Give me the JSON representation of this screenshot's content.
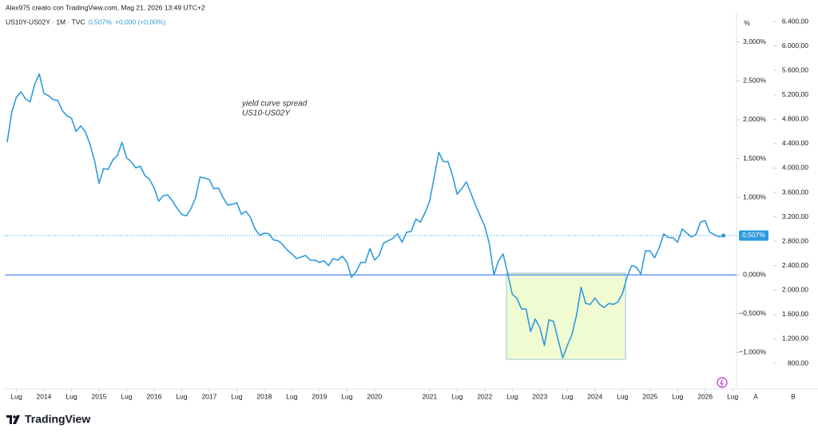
{
  "header": {
    "author_line": "Alex975 creato con TradingView.com, Mag 21, 2026 13:49 UTC+2",
    "symbol": "US10Y-US02Y · 1M · TVC",
    "last": "0,507%",
    "change": "+0,000 (+0,00%)"
  },
  "chart_data": {
    "type": "line",
    "annotation": [
      "yield curve spread",
      "US10-US02Y"
    ],
    "y_unit": "%",
    "x": [
      "2013-05",
      "2013-06",
      "2013-07",
      "2013-08",
      "2013-09",
      "2013-10",
      "2013-11",
      "2013-12",
      "2014-01",
      "2014-02",
      "2014-03",
      "2014-04",
      "2014-05",
      "2014-06",
      "2014-07",
      "2014-08",
      "2014-09",
      "2014-10",
      "2014-11",
      "2014-12",
      "2015-01",
      "2015-02",
      "2015-03",
      "2015-04",
      "2015-05",
      "2015-06",
      "2015-07",
      "2015-08",
      "2015-09",
      "2015-10",
      "2015-11",
      "2015-12",
      "2016-01",
      "2016-02",
      "2016-03",
      "2016-04",
      "2016-05",
      "2016-06",
      "2016-07",
      "2016-08",
      "2016-09",
      "2016-10",
      "2016-11",
      "2016-12",
      "2017-01",
      "2017-02",
      "2017-03",
      "2017-04",
      "2017-05",
      "2017-06",
      "2017-07",
      "2017-08",
      "2017-09",
      "2017-10",
      "2017-11",
      "2017-12",
      "2018-01",
      "2018-02",
      "2018-03",
      "2018-04",
      "2018-05",
      "2018-06",
      "2018-07",
      "2018-08",
      "2018-09",
      "2018-10",
      "2018-11",
      "2018-12",
      "2019-01",
      "2019-02",
      "2019-03",
      "2019-04",
      "2019-05",
      "2019-06",
      "2019-07",
      "2019-08",
      "2019-09",
      "2019-10",
      "2019-11",
      "2019-12",
      "2020-01",
      "2020-02",
      "2020-03",
      "2020-04",
      "2020-05",
      "2020-06",
      "2020-07",
      "2020-08",
      "2020-09",
      "2020-10",
      "2020-11",
      "2020-12",
      "2021-01",
      "2021-02",
      "2021-03",
      "2021-04",
      "2021-05",
      "2021-06",
      "2021-07",
      "2021-08",
      "2021-09",
      "2021-10",
      "2021-11",
      "2021-12",
      "2022-01",
      "2022-02",
      "2022-03",
      "2022-04",
      "2022-05",
      "2022-06",
      "2022-07",
      "2022-08",
      "2022-09",
      "2022-10",
      "2022-11",
      "2022-12",
      "2023-01",
      "2023-02",
      "2023-03",
      "2023-04",
      "2023-05",
      "2023-06",
      "2023-07",
      "2023-08",
      "2023-09",
      "2023-10",
      "2023-11",
      "2023-12",
      "2024-01",
      "2024-02",
      "2024-03",
      "2024-04",
      "2024-05",
      "2024-06",
      "2024-07",
      "2024-08",
      "2024-09",
      "2024-10",
      "2024-11",
      "2024-12",
      "2025-01",
      "2025-02",
      "2025-03",
      "2025-04",
      "2025-05",
      "2025-06",
      "2025-07",
      "2025-08",
      "2025-09",
      "2025-10",
      "2025-11",
      "2025-12",
      "2026-01",
      "2026-02",
      "2026-03",
      "2026-04",
      "2026-05"
    ],
    "series": [
      {
        "name": "US10Y-US02Y",
        "color": "#2e9bdc",
        "values": [
          1.71,
          2.1,
          2.29,
          2.36,
          2.27,
          2.23,
          2.46,
          2.59,
          2.34,
          2.31,
          2.26,
          2.25,
          2.12,
          2.05,
          2.02,
          1.85,
          1.92,
          1.85,
          1.69,
          1.48,
          1.18,
          1.37,
          1.36,
          1.48,
          1.54,
          1.71,
          1.51,
          1.46,
          1.38,
          1.4,
          1.28,
          1.23,
          1.12,
          0.95,
          1.02,
          1.03,
          0.95,
          0.86,
          0.78,
          0.76,
          0.85,
          0.99,
          1.26,
          1.25,
          1.23,
          1.11,
          1.12,
          1.0,
          0.9,
          0.91,
          0.93,
          0.78,
          0.82,
          0.74,
          0.59,
          0.51,
          0.54,
          0.53,
          0.45,
          0.44,
          0.39,
          0.32,
          0.27,
          0.21,
          0.23,
          0.25,
          0.19,
          0.19,
          0.16,
          0.18,
          0.12,
          0.21,
          0.19,
          0.24,
          0.16,
          -0.03,
          0.04,
          0.16,
          0.16,
          0.34,
          0.19,
          0.25,
          0.41,
          0.44,
          0.47,
          0.53,
          0.42,
          0.55,
          0.56,
          0.72,
          0.68,
          0.8,
          0.95,
          1.26,
          1.58,
          1.46,
          1.46,
          1.28,
          1.04,
          1.11,
          1.2,
          1.05,
          0.9,
          0.76,
          0.63,
          0.4,
          0.0,
          0.18,
          0.27,
          0.02,
          -0.25,
          -0.3,
          -0.44,
          -0.44,
          -0.73,
          -0.57,
          -0.68,
          -0.91,
          -0.58,
          -0.6,
          -0.84,
          -1.07,
          -0.91,
          -0.77,
          -0.52,
          -0.16,
          -0.37,
          -0.38,
          -0.3,
          -0.38,
          -0.42,
          -0.37,
          -0.38,
          -0.35,
          -0.24,
          -0.03,
          0.12,
          0.1,
          0.01,
          0.31,
          0.31,
          0.22,
          0.35,
          0.53,
          0.48,
          0.48,
          0.42,
          0.59,
          0.54,
          0.49,
          0.52,
          0.68,
          0.7,
          0.55,
          0.52,
          0.49,
          0.507
        ]
      }
    ],
    "price_label": {
      "value": 0.507,
      "label": "0,507%"
    },
    "xlim": [
      2013.29,
      2026.57
    ],
    "xticks": [
      {
        "value": 2013.5,
        "label": "Lug"
      },
      2014,
      {
        "value": 2014.5,
        "label": "Lug"
      },
      2015,
      {
        "value": 2015.5,
        "label": "Lug"
      },
      2016,
      {
        "value": 2016.5,
        "label": "Lug"
      },
      2017,
      {
        "value": 2017.5,
        "label": "Lug"
      },
      2018,
      {
        "value": 2018.5,
        "label": "Lug"
      },
      2019,
      {
        "value": 2019.5,
        "label": "Lug"
      },
      2020,
      2021,
      {
        "value": 2021.5,
        "label": "Lug"
      },
      2022,
      {
        "value": 2022.5,
        "label": "Lug"
      },
      2023,
      {
        "value": 2023.5,
        "label": "Lug"
      },
      2024,
      {
        "value": 2024.5,
        "label": "Lug"
      },
      2025,
      {
        "value": 2025.5,
        "label": "Lug"
      },
      2026,
      {
        "value": 2026.5,
        "label": "Lug"
      }
    ],
    "ylim": [
      -1.45,
      3.39
    ],
    "yticks": [
      {
        "value": 3,
        "label": "3,000%"
      },
      {
        "value": 2.5,
        "label": "2,500%"
      },
      {
        "value": 2,
        "label": "2,000%"
      },
      {
        "value": 1.5,
        "label": "1,500%"
      },
      {
        "value": 1,
        "label": "1,000%"
      },
      {
        "value": 0,
        "label": "0,000%"
      },
      {
        "value": -0.5,
        "label": "−0,500%"
      },
      {
        "value": -1,
        "label": "−1,000%"
      }
    ],
    "y2lim": [
      408,
      6557
    ],
    "y2ticks": [
      {
        "value": 6400,
        "label": "6.400,00"
      },
      {
        "value": 6000,
        "label": "6.000,00"
      },
      {
        "value": 5600,
        "label": "5.600,00"
      },
      {
        "value": 5200,
        "label": "5.200,00"
      },
      {
        "value": 4800,
        "label": "4.800,00"
      },
      {
        "value": 4400,
        "label": "4.400,00"
      },
      {
        "value": 4000,
        "label": "4.000,00"
      },
      {
        "value": 3600,
        "label": "3.600,00"
      },
      {
        "value": 3200,
        "label": "3.200,00"
      },
      {
        "value": 2800,
        "label": "2.800,00"
      },
      {
        "value": 2400,
        "label": "2.400,00"
      },
      {
        "value": 2000,
        "label": "2.000,00"
      },
      {
        "value": 1600,
        "label": "1.600,00"
      },
      {
        "value": 1200,
        "label": "1.200,00"
      },
      {
        "value": 800,
        "label": "800,00"
      }
    ],
    "scale_buttons": [
      "A",
      "B"
    ]
  },
  "footer": {
    "brand": "TradingView"
  }
}
